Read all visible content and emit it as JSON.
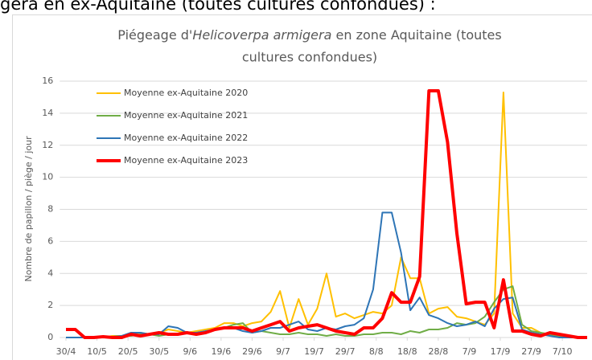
{
  "heading": "gera en ex-Aquitaine (toutes cultures confondues) :",
  "chart_data": {
    "type": "line",
    "title": [
      "Piégeage d'",
      "Helicoverpa armigera",
      " en zone Aquitaine (toutes",
      "cultures confondues)"
    ],
    "y_label": "Nombre de papillon / piège / jour",
    "x": [
      0,
      3,
      6,
      9,
      12,
      15,
      18,
      21,
      24,
      27,
      30,
      33,
      36,
      39,
      42,
      45,
      48,
      51,
      54,
      57,
      60,
      63,
      66,
      69,
      72,
      75,
      78,
      81,
      84,
      87,
      90,
      93,
      96,
      99,
      102,
      105,
      108,
      111,
      114,
      117,
      120,
      123,
      126,
      129,
      132,
      135,
      138,
      141,
      144,
      147,
      150,
      153,
      156,
      159,
      162,
      165,
      168
    ],
    "xlim": [
      -2,
      168
    ],
    "xticks": [
      {
        "value": 0,
        "label": "30/4"
      },
      {
        "value": 10,
        "label": "10/5"
      },
      {
        "value": 20,
        "label": "20/5"
      },
      {
        "value": 30,
        "label": "30/5"
      },
      {
        "value": 40,
        "label": "9/6"
      },
      {
        "value": 50,
        "label": "19/6"
      },
      {
        "value": 60,
        "label": "29/6"
      },
      {
        "value": 70,
        "label": "9/7"
      },
      {
        "value": 80,
        "label": "19/7"
      },
      {
        "value": 90,
        "label": "29/7"
      },
      {
        "value": 100,
        "label": "8/8"
      },
      {
        "value": 110,
        "label": "18/8"
      },
      {
        "value": 120,
        "label": "28/8"
      },
      {
        "value": 130,
        "label": "7/9"
      },
      {
        "value": 140,
        "label": "17/9"
      },
      {
        "value": 150,
        "label": "27/9"
      },
      {
        "value": 160,
        "label": "7/10"
      }
    ],
    "ylim": [
      0,
      16
    ],
    "yticks": [
      0,
      2,
      4,
      6,
      8,
      10,
      12,
      14,
      16
    ],
    "legend": "upper-left",
    "series": [
      {
        "name": "Moyenne ex-Aquitaine 2020",
        "color": "#ffc000",
        "width": 2,
        "values": [
          0,
          0,
          0,
          0.05,
          0,
          0.1,
          0.1,
          0.2,
          0.3,
          0.2,
          0.3,
          0.5,
          0.4,
          0.3,
          0.4,
          0.5,
          0.6,
          0.9,
          0.9,
          0.7,
          0.9,
          1.0,
          1.6,
          2.9,
          0.6,
          2.4,
          0.8,
          1.8,
          4.0,
          1.3,
          1.5,
          1.2,
          1.4,
          1.6,
          1.5,
          2.0,
          5.0,
          3.7,
          3.7,
          1.5,
          1.8,
          1.9,
          1.3,
          1.2,
          1.0,
          0.8,
          1.5,
          15.3,
          1.5,
          0.6,
          0.6,
          0.3,
          0.1,
          0.1,
          0,
          0,
          0
        ]
      },
      {
        "name": "Moyenne ex-Aquitaine 2021",
        "color": "#70ad47",
        "width": 2,
        "values": [
          0,
          0,
          0,
          0,
          0,
          0,
          0.1,
          0.1,
          0.2,
          0.2,
          0.1,
          0.2,
          0.2,
          0.3,
          0.2,
          0.3,
          0.5,
          0.6,
          0.8,
          0.9,
          0.3,
          0.4,
          0.3,
          0.2,
          0.2,
          0.3,
          0.2,
          0.2,
          0.1,
          0.2,
          0.1,
          0.1,
          0.2,
          0.2,
          0.3,
          0.3,
          0.2,
          0.4,
          0.3,
          0.5,
          0.5,
          0.6,
          0.9,
          0.8,
          0.9,
          1.3,
          2.2,
          3.0,
          3.2,
          0.8,
          0.4,
          0.3,
          0.2,
          0.1,
          0,
          0,
          0
        ]
      },
      {
        "name": "Moyenne ex-Aquitaine 2022",
        "color": "#2e75b6",
        "width": 2,
        "values": [
          0,
          0,
          0,
          0,
          0,
          0.05,
          0.1,
          0.3,
          0.3,
          0.2,
          0.2,
          0.7,
          0.6,
          0.3,
          0.3,
          0.4,
          0.5,
          0.6,
          0.6,
          0.4,
          0.3,
          0.4,
          0.6,
          0.6,
          0.8,
          1.0,
          0.5,
          0.4,
          0.6,
          0.5,
          0.7,
          0.8,
          1.2,
          3.0,
          7.8,
          7.8,
          5.3,
          1.7,
          2.5,
          1.4,
          1.2,
          0.9,
          0.7,
          0.8,
          1.0,
          0.7,
          1.8,
          2.4,
          2.5,
          0.5,
          0.3,
          0.2,
          0.1,
          0,
          0,
          0,
          0
        ]
      },
      {
        "name": "Moyenne ex-Aquitaine 2023",
        "color": "#ff0000",
        "width": 4,
        "values": [
          0.5,
          0.5,
          0,
          0,
          0.05,
          0,
          0,
          0.2,
          0.1,
          0.2,
          0.3,
          0.2,
          0.2,
          0.3,
          0.2,
          0.3,
          0.5,
          0.6,
          0.6,
          0.6,
          0.4,
          0.6,
          0.8,
          1.0,
          0.4,
          0.6,
          0.7,
          0.8,
          0.6,
          0.4,
          0.3,
          0.2,
          0.6,
          0.6,
          1.2,
          2.8,
          2.2,
          2.2,
          3.8,
          15.4,
          15.4,
          12.2,
          6.5,
          2.1,
          2.2,
          2.2,
          0.6,
          3.6,
          0.4,
          0.4,
          0.2,
          0.1,
          0.3,
          0.2,
          0.1,
          0,
          0
        ]
      }
    ]
  }
}
